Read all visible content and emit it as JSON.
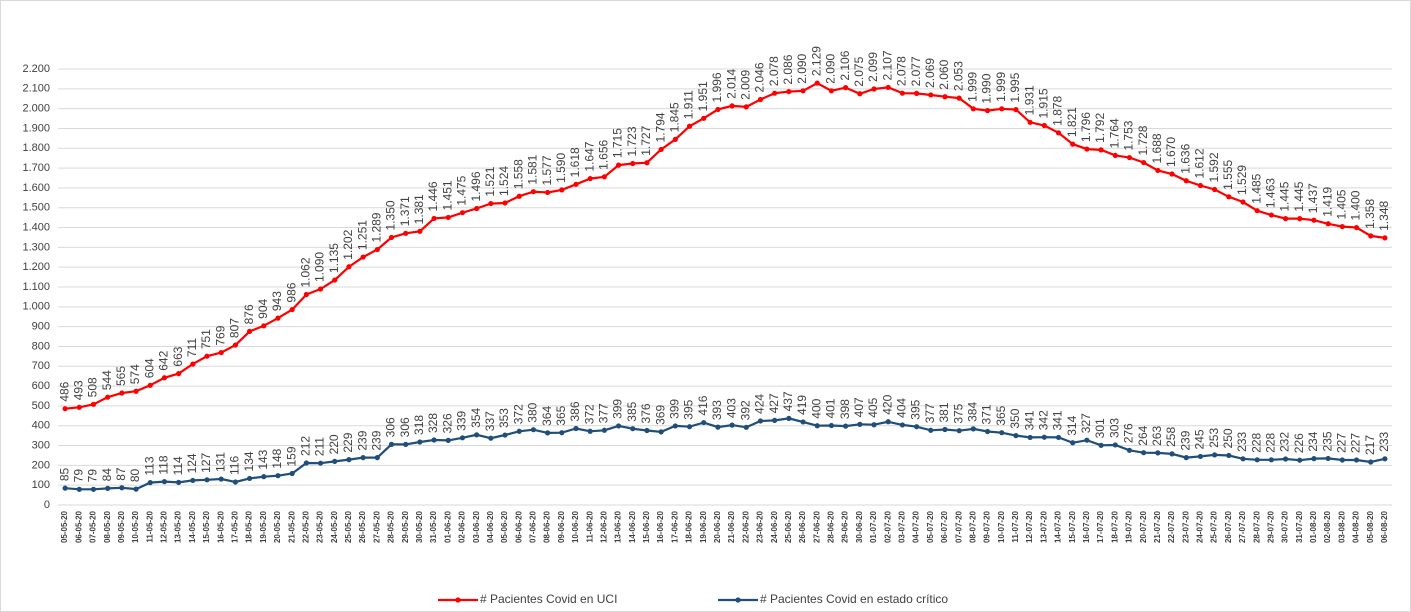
{
  "chart_data": {
    "type": "line",
    "categories": [
      "05-05-20",
      "06-05-20",
      "07-05-20",
      "08-05-20",
      "09-05-20",
      "10-05-20",
      "11-05-20",
      "12-05-20",
      "13-05-20",
      "14-05-20",
      "15-05-20",
      "16-05-20",
      "17-05-20",
      "18-05-20",
      "19-05-20",
      "20-05-20",
      "21-05-20",
      "22-05-20",
      "23-05-20",
      "24-05-20",
      "25-05-20",
      "26-05-20",
      "27-05-20",
      "28-05-20",
      "29-05-20",
      "30-05-20",
      "31-05-20",
      "01-06-20",
      "02-06-20",
      "03-06-20",
      "04-06-20",
      "05-06-20",
      "06-06-20",
      "07-06-20",
      "08-06-20",
      "09-06-20",
      "10-06-20",
      "11-06-20",
      "12-06-20",
      "13-06-20",
      "14-06-20",
      "15-06-20",
      "16-06-20",
      "17-06-20",
      "18-06-20",
      "19-06-20",
      "20-06-20",
      "21-06-20",
      "22-06-20",
      "23-06-20",
      "24-06-20",
      "25-06-20",
      "26-06-20",
      "27-06-20",
      "28-06-20",
      "29-06-20",
      "30-06-20",
      "01-07-20",
      "02-07-20",
      "03-07-20",
      "04-07-20",
      "05-07-20",
      "06-07-20",
      "07-07-20",
      "08-07-20",
      "09-07-20",
      "10-07-20",
      "11-07-20",
      "12-07-20",
      "13-07-20",
      "14-07-20",
      "15-07-20",
      "16-07-20",
      "17-07-20",
      "18-07-20",
      "19-07-20",
      "20-07-20",
      "21-07-20",
      "22-07-20",
      "23-07-20",
      "24-07-20",
      "25-07-20",
      "26-07-20",
      "27-07-20",
      "28-07-20",
      "29-07-20",
      "30-07-20",
      "31-07-20",
      "01-08-20",
      "02-08-20",
      "03-08-20",
      "04-08-20",
      "05-08-20",
      "06-08-20"
    ],
    "series": [
      {
        "name": "# Pacientes Covid en UCI",
        "color": "#ff0000",
        "values": [
          486,
          493,
          508,
          544,
          565,
          574,
          604,
          642,
          663,
          711,
          751,
          769,
          807,
          876,
          904,
          943,
          986,
          1062,
          1090,
          1135,
          1202,
          1251,
          1289,
          1350,
          1371,
          1381,
          1446,
          1451,
          1475,
          1496,
          1521,
          1524,
          1558,
          1581,
          1577,
          1590,
          1618,
          1647,
          1656,
          1715,
          1723,
          1727,
          1794,
          1845,
          1911,
          1951,
          1996,
          2014,
          2009,
          2046,
          2078,
          2086,
          2090,
          2129,
          2090,
          2106,
          2075,
          2099,
          2107,
          2078,
          2077,
          2069,
          2060,
          2053,
          1999,
          1990,
          1999,
          1995,
          1931,
          1915,
          1878,
          1821,
          1796,
          1792,
          1764,
          1753,
          1728,
          1688,
          1670,
          1636,
          1612,
          1592,
          1555,
          1529,
          1485,
          1463,
          1445,
          1445,
          1437,
          1419,
          1405,
          1400,
          1358,
          1348
        ],
        "value_labels": [
          "486",
          "493",
          "508",
          "544",
          "565",
          "574",
          "604",
          "642",
          "663",
          "711",
          "751",
          "769",
          "807",
          "876",
          "904",
          "943",
          "986",
          "1.062",
          "1.090",
          "1.135",
          "1.202",
          "1.251",
          "1.289",
          "1.350",
          "1.371",
          "1.381",
          "1.446",
          "1.451",
          "1.475",
          "1.496",
          "1.521",
          "1.524",
          "1.558",
          "1.581",
          "1.577",
          "1.590",
          "1.618",
          "1.647",
          "1.656",
          "1.715",
          "1.723",
          "1.727",
          "1.794",
          "1.845",
          "1.911",
          "1.951",
          "1.996",
          "2.014",
          "2.009",
          "2.046",
          "2.078",
          "2.086",
          "2.090",
          "2.129",
          "2.090",
          "2.106",
          "2.075",
          "2.099",
          "2.107",
          "2.078",
          "2.077",
          "2.069",
          "2.060",
          "2.053",
          "1.999",
          "1.990",
          "1.999",
          "1.995",
          "1.931",
          "1.915",
          "1.878",
          "1.821",
          "1.796",
          "1.792",
          "1.764",
          "1.753",
          "1.728",
          "1.688",
          "1.670",
          "1.636",
          "1.612",
          "1.592",
          "1.555",
          "1.529",
          "1.485",
          "1.463",
          "1.445",
          "1.445",
          "1.437",
          "1.419",
          "1.405",
          "1.400",
          "1.358",
          "1.348"
        ]
      },
      {
        "name": "# Pacientes Covid en estado crítico",
        "color": "#1f4e79",
        "values": [
          85,
          79,
          79,
          84,
          87,
          80,
          113,
          118,
          114,
          124,
          127,
          131,
          116,
          134,
          143,
          148,
          159,
          212,
          211,
          220,
          229,
          239,
          239,
          306,
          306,
          318,
          328,
          326,
          339,
          354,
          337,
          353,
          372,
          380,
          364,
          365,
          386,
          372,
          377,
          399,
          385,
          376,
          369,
          399,
          395,
          416,
          393,
          403,
          392,
          424,
          427,
          437,
          419,
          400,
          401,
          398,
          407,
          405,
          420,
          404,
          395,
          377,
          381,
          375,
          384,
          371,
          365,
          350,
          341,
          342,
          341,
          314,
          327,
          301,
          303,
          276,
          264,
          263,
          258,
          239,
          245,
          253,
          250,
          233,
          228,
          228,
          232,
          226,
          234,
          235,
          227,
          227,
          217,
          233
        ]
      }
    ],
    "ylim": [
      0,
      2200
    ],
    "yticks": [
      0,
      100,
      200,
      300,
      400,
      500,
      600,
      700,
      800,
      900,
      {
        "value": 1000,
        "label": "1.000"
      },
      {
        "value": 1100,
        "label": "1.100"
      },
      {
        "value": 1200,
        "label": "1.200"
      },
      {
        "value": 1300,
        "label": "1.300"
      },
      {
        "value": 1400,
        "label": "1.400"
      },
      {
        "value": 1500,
        "label": "1.500"
      },
      {
        "value": 1600,
        "label": "1.600"
      },
      {
        "value": 1700,
        "label": "1.700"
      },
      {
        "value": 1800,
        "label": "1.800"
      },
      {
        "value": 1900,
        "label": "1.900"
      },
      {
        "value": 2000,
        "label": "2.000"
      },
      {
        "value": 2100,
        "label": "2.100"
      },
      {
        "value": 2200,
        "label": "2.200"
      }
    ],
    "grid": true
  }
}
